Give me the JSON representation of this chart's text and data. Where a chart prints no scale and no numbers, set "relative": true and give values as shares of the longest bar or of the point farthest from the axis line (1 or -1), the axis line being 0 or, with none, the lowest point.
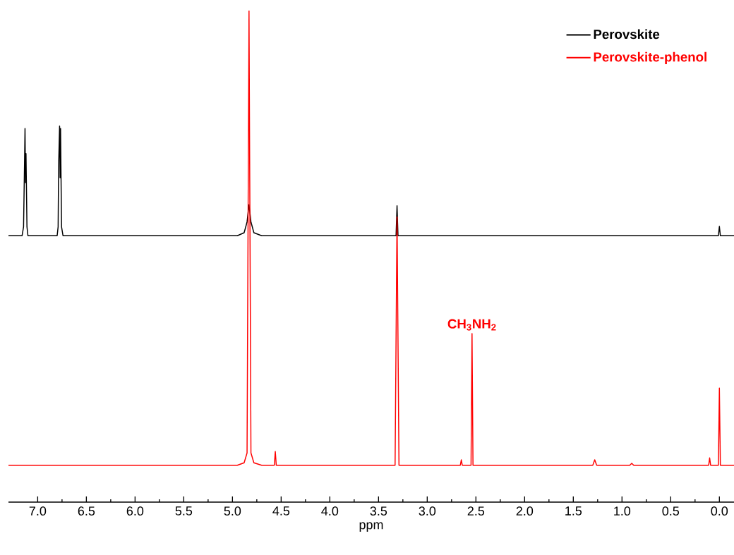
{
  "chart_data": {
    "type": "line",
    "relative": true,
    "xlabel": "ppm",
    "xlim": [
      7.3,
      -0.15
    ],
    "xticks": [
      {
        "value": 7,
        "label": "7.0"
      },
      {
        "value": 6.5,
        "label": "6.5"
      },
      {
        "value": 6,
        "label": "6.0"
      },
      {
        "value": 5.5,
        "label": "5.5"
      },
      {
        "value": 5,
        "label": "5.0"
      },
      {
        "value": 4.5,
        "label": "4.5"
      },
      {
        "value": 4,
        "label": "4.0"
      },
      {
        "value": 3.5,
        "label": "3.5"
      },
      {
        "value": 3,
        "label": "3.0"
      },
      {
        "value": 2.5,
        "label": "2.5"
      },
      {
        "value": 2,
        "label": "2.0"
      },
      {
        "value": 1.5,
        "label": "1.5"
      },
      {
        "value": 1,
        "label": "1.0"
      },
      {
        "value": 0.5,
        "label": "0.5"
      },
      {
        "value": 0,
        "label": "0.0"
      }
    ],
    "legend": "top right",
    "annotations": [
      {
        "text": "CH$_{3}$NH$_{2}$",
        "x": 2.54,
        "y": 0.343
      }
    ],
    "series": [
      {
        "name": "Perovskite",
        "color": "#000000",
        "x": [
          7.3,
          7.16,
          7.145,
          7.135,
          7.13,
          7.125,
          7.12,
          7.11,
          7.1,
          6.8,
          6.79,
          6.785,
          6.775,
          6.77,
          6.765,
          6.755,
          6.74,
          4.95,
          4.88,
          4.85,
          4.83,
          4.81,
          4.78,
          4.7,
          3.32,
          3.31,
          3.3,
          0.01,
          0,
          -0.01,
          -0.15
        ],
        "values": [
          0.542,
          0.542,
          0.56,
          0.689,
          0.76,
          0.65,
          0.709,
          0.56,
          0.542,
          0.542,
          0.56,
          0.683,
          0.765,
          0.66,
          0.76,
          0.56,
          0.542,
          0.542,
          0.548,
          0.57,
          0.605,
          0.57,
          0.548,
          0.542,
          0.542,
          0.603,
          0.542,
          0.542,
          0.561,
          0.542,
          0.542
        ]
      },
      {
        "name": "Perovskite-phenol",
        "color": "#ff0000",
        "x": [
          7.3,
          4.95,
          4.88,
          4.85,
          4.83,
          4.81,
          4.78,
          4.7,
          4.57,
          4.56,
          4.55,
          3.33,
          3.31,
          3.29,
          2.66,
          2.65,
          2.64,
          2.55,
          2.54,
          2.53,
          1.3,
          1.28,
          1.26,
          0.92,
          0.9,
          0.88,
          0.11,
          0.1,
          0.09,
          0.01,
          0,
          -0.01,
          -0.15
        ],
        "values": [
          0.075,
          0.075,
          0.08,
          0.1,
          1.0,
          0.1,
          0.08,
          0.075,
          0.075,
          0.103,
          0.075,
          0.075,
          0.58,
          0.075,
          0.075,
          0.086,
          0.075,
          0.075,
          0.343,
          0.075,
          0.075,
          0.086,
          0.075,
          0.075,
          0.079,
          0.075,
          0.075,
          0.09,
          0.075,
          0.075,
          0.232,
          0.075,
          0.075
        ]
      }
    ]
  }
}
